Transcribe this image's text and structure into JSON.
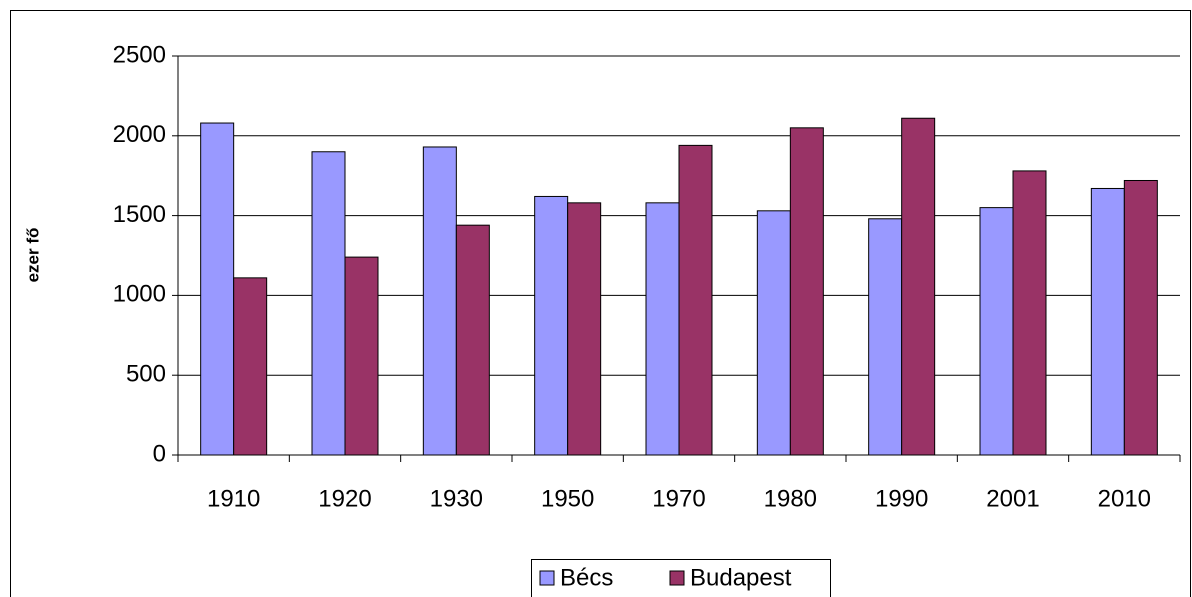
{
  "chart_data": {
    "type": "bar",
    "y_label": "ezer fő",
    "categories": [
      "1910",
      "1920",
      "1930",
      "1950",
      "1970",
      "1980",
      "1990",
      "2001",
      "2010"
    ],
    "series": [
      {
        "name": "Bécs",
        "color": "#9999ff",
        "values": [
          2080,
          1900,
          1930,
          1620,
          1580,
          1530,
          1480,
          1550,
          1670
        ]
      },
      {
        "name": "Budapest",
        "color": "#993366",
        "values": [
          1110,
          1240,
          1440,
          1580,
          1940,
          2050,
          2110,
          1780,
          1720
        ]
      }
    ],
    "ylim": [
      0,
      2500
    ],
    "yticks": [
      0,
      500,
      1000,
      1500,
      2000,
      2500
    ],
    "grid": true,
    "legend": "bottom"
  }
}
